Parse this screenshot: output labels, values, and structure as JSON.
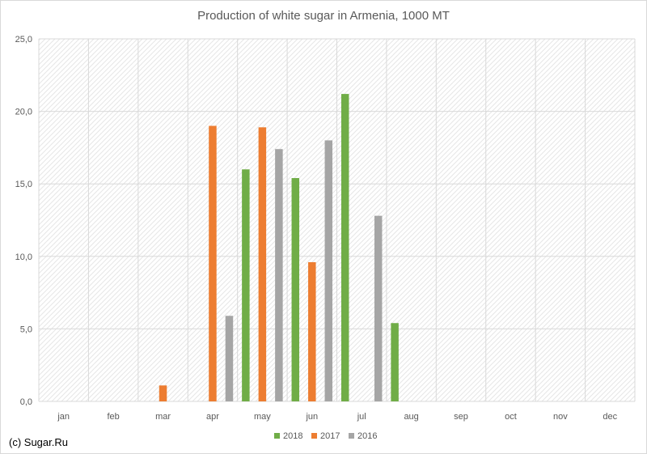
{
  "credit": "(c) Sugar.Ru",
  "chart_data": {
    "type": "bar",
    "title": "Production of white sugar in Armenia, 1000 MT",
    "xlabel": "",
    "ylabel": "",
    "categories": [
      "jan",
      "feb",
      "mar",
      "apr",
      "may",
      "jun",
      "jul",
      "aug",
      "sep",
      "oct",
      "nov",
      "dec"
    ],
    "series": [
      {
        "name": "2018",
        "color": "#70ad47",
        "values": [
          null,
          null,
          null,
          null,
          16.0,
          15.4,
          21.2,
          5.4,
          null,
          null,
          null,
          null
        ]
      },
      {
        "name": "2017",
        "color": "#ed7d31",
        "values": [
          null,
          null,
          1.1,
          19.0,
          18.9,
          9.6,
          null,
          null,
          null,
          null,
          null,
          null
        ]
      },
      {
        "name": "2016",
        "color": "#a5a5a5",
        "values": [
          null,
          null,
          null,
          5.9,
          17.4,
          18.0,
          12.8,
          null,
          null,
          null,
          null,
          null
        ]
      }
    ],
    "ylim": [
      0,
      25
    ],
    "yticks": [
      "0,0",
      "5,0",
      "10,0",
      "15,0",
      "20,0",
      "25,0"
    ],
    "grid": true,
    "legend": "bottom",
    "plot_background": "diagonal-hatch"
  }
}
